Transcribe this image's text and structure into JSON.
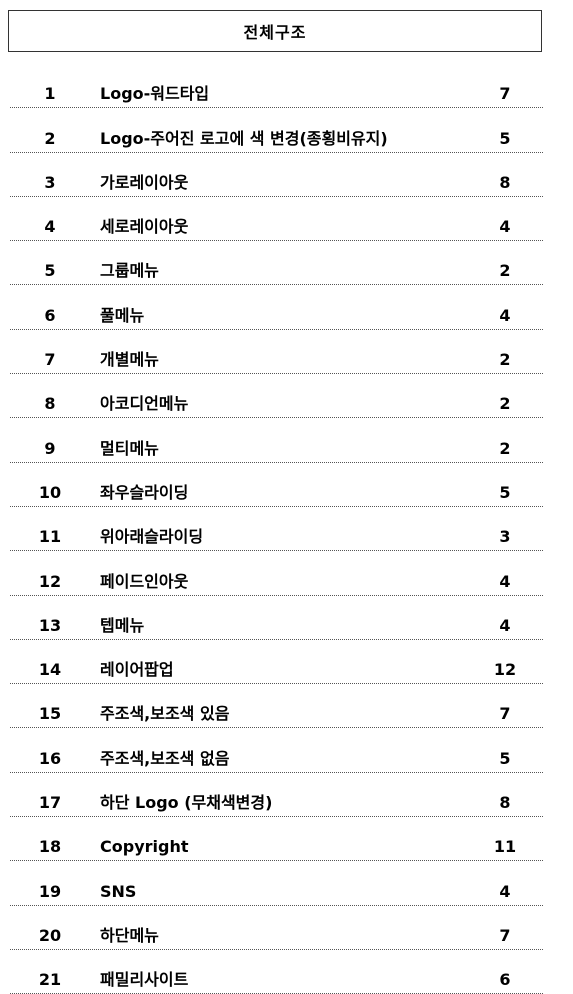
{
  "title": "전체구조",
  "items": [
    {
      "num": "1",
      "label": "Logo-워드타입",
      "count": "7"
    },
    {
      "num": "2",
      "label": "Logo-주어진 로고에 색 변경(종횡비유지)",
      "count": "5"
    },
    {
      "num": "3",
      "label": "가로레이아웃",
      "count": "8"
    },
    {
      "num": "4",
      "label": "세로레이아웃",
      "count": "4"
    },
    {
      "num": "5",
      "label": "그룹메뉴",
      "count": "2"
    },
    {
      "num": "6",
      "label": "풀메뉴",
      "count": "4"
    },
    {
      "num": "7",
      "label": "개별메뉴",
      "count": "2"
    },
    {
      "num": "8",
      "label": "아코디언메뉴",
      "count": "2"
    },
    {
      "num": "9",
      "label": "멀티메뉴",
      "count": "2"
    },
    {
      "num": "10",
      "label": "좌우슬라이딩",
      "count": "5"
    },
    {
      "num": "11",
      "label": "위아래슬라이딩",
      "count": "3"
    },
    {
      "num": "12",
      "label": "페이드인아웃",
      "count": "4"
    },
    {
      "num": "13",
      "label": "텝메뉴",
      "count": "4"
    },
    {
      "num": "14",
      "label": "레이어팝업",
      "count": "12"
    },
    {
      "num": "15",
      "label": "주조색,보조색 있음",
      "count": "7"
    },
    {
      "num": "16",
      "label": "주조색,보조색 없음",
      "count": "5"
    },
    {
      "num": "17",
      "label": "하단 Logo (무채색변경)",
      "count": "8"
    },
    {
      "num": "18",
      "label": "Copyright",
      "count": "11"
    },
    {
      "num": "19",
      "label": "SNS",
      "count": "4"
    },
    {
      "num": "20",
      "label": "하단메뉴",
      "count": "7"
    },
    {
      "num": "21",
      "label": "패밀리사이트",
      "count": "6"
    }
  ]
}
